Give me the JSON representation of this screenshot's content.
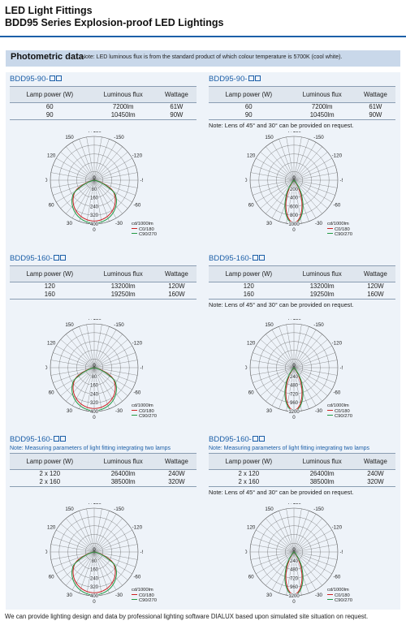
{
  "header": {
    "title": "LED Light Fittings",
    "subtitle": "BDD95 Series Explosion-proof LED Lightings"
  },
  "photometric": {
    "title": "Photometric data",
    "note": "Note: LED luminous flux is from the standard product of which colour temperature is 5700K (cool white)."
  },
  "columns": {
    "power": "Lamp power (W)",
    "flux": "Luminous flux",
    "wattage": "Wattage"
  },
  "lens_note": "Note: Lens of 45° and 30° can be provided on request.",
  "footer": "We can provide lighting design and data by professional lighting software DIALUX based upon simulated site situation on request.",
  "legend": {
    "unit": "cd/1000lm",
    "c0": "C0/180",
    "c90": "C90/270"
  },
  "colors": {
    "accent": "#1c5fa8",
    "c0": "#cc2222",
    "c90": "#229944"
  },
  "blocks": [
    {
      "model_prefix": "BDD95-90-",
      "model_note": "",
      "rows": [
        {
          "power": "60",
          "flux": "7200lm",
          "wattage": "61W"
        },
        {
          "power": "90",
          "flux": "10450lm",
          "wattage": "90W"
        }
      ],
      "show_lens_note": false,
      "chart": {
        "angle_labels": [
          "-/+180",
          "-150",
          "150",
          "-120",
          "120",
          "-90",
          "90",
          "-60",
          "60",
          "-30",
          "30",
          "0"
        ],
        "radial_labels": [
          "0",
          "80",
          "160",
          "240",
          "320",
          "400"
        ],
        "rmax": 400,
        "beam": "wide"
      }
    },
    {
      "model_prefix": "BDD95-90-",
      "model_note": "",
      "rows": [
        {
          "power": "60",
          "flux": "7200lm",
          "wattage": "61W"
        },
        {
          "power": "90",
          "flux": "10450lm",
          "wattage": "90W"
        }
      ],
      "show_lens_note": true,
      "chart": {
        "angle_labels": [
          "-/+180",
          "-150",
          "150",
          "-120",
          "120",
          "-90",
          "90",
          "-60",
          "60",
          "-30",
          "30",
          "0"
        ],
        "radial_labels": [
          "0",
          "200",
          "400",
          "600",
          "800",
          "1000"
        ],
        "rmax": 1000,
        "beam": "narrow"
      }
    },
    {
      "model_prefix": "BDD95-160-",
      "model_note": "",
      "rows": [
        {
          "power": "120",
          "flux": "13200lm",
          "wattage": "120W"
        },
        {
          "power": "160",
          "flux": "19250lm",
          "wattage": "160W"
        }
      ],
      "show_lens_note": false,
      "chart": {
        "angle_labels": [
          "-/+180",
          "-150",
          "150",
          "-120",
          "120",
          "-90",
          "90",
          "-60",
          "60",
          "-30",
          "30",
          "0"
        ],
        "radial_labels": [
          "0",
          "80",
          "160",
          "240",
          "320",
          "400"
        ],
        "rmax": 400,
        "beam": "wide"
      }
    },
    {
      "model_prefix": "BDD95-160-",
      "model_note": "",
      "rows": [
        {
          "power": "120",
          "flux": "13200lm",
          "wattage": "120W"
        },
        {
          "power": "160",
          "flux": "19250lm",
          "wattage": "160W"
        }
      ],
      "show_lens_note": true,
      "chart": {
        "angle_labels": [
          "-/+180",
          "-150",
          "150",
          "-120",
          "120",
          "-90",
          "90",
          "-60",
          "60",
          "-30",
          "30",
          "0"
        ],
        "radial_labels": [
          "0",
          "240",
          "480",
          "720",
          "960",
          "1200"
        ],
        "rmax": 1200,
        "beam": "narrow"
      }
    },
    {
      "model_prefix": "BDD95-160-",
      "model_note": "Note: Measuring parameters of light fitting integrating two lamps",
      "rows": [
        {
          "power": "2 x 120",
          "flux": "26400lm",
          "wattage": "240W"
        },
        {
          "power": "2 x 160",
          "flux": "38500lm",
          "wattage": "320W"
        }
      ],
      "show_lens_note": false,
      "chart": {
        "angle_labels": [
          "-/+180",
          "-150",
          "150",
          "-120",
          "120",
          "-90",
          "90",
          "-60",
          "60",
          "-30",
          "30",
          "0"
        ],
        "radial_labels": [
          "0",
          "80",
          "160",
          "240",
          "320",
          "400"
        ],
        "rmax": 400,
        "beam": "wide"
      }
    },
    {
      "model_prefix": "BDD95-160-",
      "model_note": "Note: Measuring parameters of light fitting integrating two lamps",
      "rows": [
        {
          "power": "2 x 120",
          "flux": "26400lm",
          "wattage": "240W"
        },
        {
          "power": "2 x 160",
          "flux": "38500lm",
          "wattage": "320W"
        }
      ],
      "show_lens_note": true,
      "chart": {
        "angle_labels": [
          "-/+180",
          "-150",
          "150",
          "-120",
          "120",
          "-90",
          "90",
          "-60",
          "60",
          "-30",
          "30",
          "0"
        ],
        "radial_labels": [
          "0",
          "240",
          "480",
          "720",
          "960",
          "1200"
        ],
        "rmax": 1200,
        "beam": "narrow"
      }
    }
  ]
}
